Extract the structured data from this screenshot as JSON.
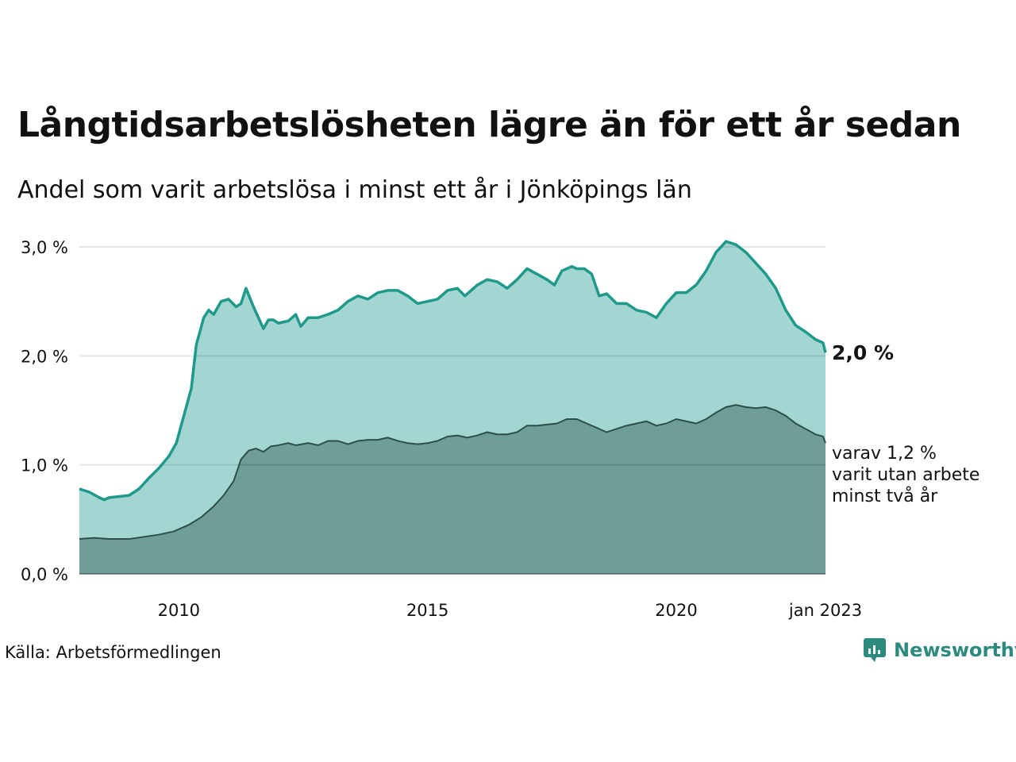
{
  "header": {
    "title": "Långtidsarbetslösheten lägre än för ett år sedan",
    "subtitle": "Andel som varit arbetslösa i minst ett år i Jönköpings län"
  },
  "annotations": {
    "latest_value": "2,0 %",
    "sub_line1": "varav 1,2 %",
    "sub_line2": "varit utan arbete",
    "sub_line3": "minst två år"
  },
  "footer": {
    "source": "Källa: Arbetsförmedlingen",
    "brand": "Newsworthy"
  },
  "colors": {
    "upper_fill": "#a4d6d1",
    "upper_line": "#1f9a8a",
    "lower_fill": "#6f9e97",
    "lower_line": "#2d4f4a",
    "grid": "#dddddd",
    "brand": "#2c8a7f"
  },
  "chart_data": {
    "type": "area",
    "x_start": "2008-01",
    "x_end": "2023-01",
    "x_ticks": [
      {
        "x": 2010,
        "label": "2010"
      },
      {
        "x": 2015,
        "label": "2015"
      },
      {
        "x": 2020,
        "label": "2020"
      },
      {
        "x": 2023,
        "label": "jan 2023"
      }
    ],
    "y_ticks": [
      {
        "y": 0,
        "label": "0,0 %"
      },
      {
        "y": 1,
        "label": "1,0 %"
      },
      {
        "y": 2,
        "label": "2,0 %"
      },
      {
        "y": 3,
        "label": "3,0 %"
      }
    ],
    "ylim": [
      0,
      3
    ],
    "grid": true,
    "series": [
      {
        "values": [
          [
            2008.0,
            0.78
          ],
          [
            2008.2,
            0.75
          ],
          [
            2008.4,
            0.7
          ],
          [
            2008.5,
            0.68
          ],
          [
            2008.6,
            0.7
          ],
          [
            2008.8,
            0.71
          ],
          [
            2009.0,
            0.72
          ],
          [
            2009.2,
            0.78
          ],
          [
            2009.4,
            0.88
          ],
          [
            2009.6,
            0.97
          ],
          [
            2009.8,
            1.08
          ],
          [
            2009.95,
            1.2
          ],
          [
            2010.1,
            1.45
          ],
          [
            2010.25,
            1.7
          ],
          [
            2010.35,
            2.1
          ],
          [
            2010.5,
            2.35
          ],
          [
            2010.6,
            2.42
          ],
          [
            2010.7,
            2.38
          ],
          [
            2010.85,
            2.5
          ],
          [
            2011.0,
            2.52
          ],
          [
            2011.15,
            2.45
          ],
          [
            2011.25,
            2.48
          ],
          [
            2011.35,
            2.62
          ],
          [
            2011.5,
            2.45
          ],
          [
            2011.6,
            2.35
          ],
          [
            2011.7,
            2.25
          ],
          [
            2011.8,
            2.33
          ],
          [
            2011.9,
            2.33
          ],
          [
            2012.0,
            2.3
          ],
          [
            2012.2,
            2.32
          ],
          [
            2012.35,
            2.38
          ],
          [
            2012.45,
            2.27
          ],
          [
            2012.6,
            2.35
          ],
          [
            2012.8,
            2.35
          ],
          [
            2013.0,
            2.38
          ],
          [
            2013.2,
            2.42
          ],
          [
            2013.4,
            2.5
          ],
          [
            2013.6,
            2.55
          ],
          [
            2013.8,
            2.52
          ],
          [
            2014.0,
            2.58
          ],
          [
            2014.2,
            2.6
          ],
          [
            2014.4,
            2.6
          ],
          [
            2014.6,
            2.55
          ],
          [
            2014.8,
            2.48
          ],
          [
            2015.0,
            2.5
          ],
          [
            2015.2,
            2.52
          ],
          [
            2015.4,
            2.6
          ],
          [
            2015.6,
            2.62
          ],
          [
            2015.75,
            2.55
          ],
          [
            2016.0,
            2.65
          ],
          [
            2016.2,
            2.7
          ],
          [
            2016.4,
            2.68
          ],
          [
            2016.6,
            2.62
          ],
          [
            2016.8,
            2.7
          ],
          [
            2017.0,
            2.8
          ],
          [
            2017.2,
            2.75
          ],
          [
            2017.4,
            2.7
          ],
          [
            2017.55,
            2.65
          ],
          [
            2017.7,
            2.78
          ],
          [
            2017.9,
            2.82
          ],
          [
            2018.0,
            2.8
          ],
          [
            2018.15,
            2.8
          ],
          [
            2018.3,
            2.75
          ],
          [
            2018.45,
            2.55
          ],
          [
            2018.6,
            2.57
          ],
          [
            2018.8,
            2.48
          ],
          [
            2019.0,
            2.48
          ],
          [
            2019.2,
            2.42
          ],
          [
            2019.4,
            2.4
          ],
          [
            2019.6,
            2.35
          ],
          [
            2019.8,
            2.48
          ],
          [
            2020.0,
            2.58
          ],
          [
            2020.2,
            2.58
          ],
          [
            2020.4,
            2.65
          ],
          [
            2020.6,
            2.78
          ],
          [
            2020.8,
            2.95
          ],
          [
            2021.0,
            3.05
          ],
          [
            2021.2,
            3.02
          ],
          [
            2021.4,
            2.95
          ],
          [
            2021.6,
            2.85
          ],
          [
            2021.8,
            2.75
          ],
          [
            2022.0,
            2.62
          ],
          [
            2022.2,
            2.42
          ],
          [
            2022.4,
            2.28
          ],
          [
            2022.6,
            2.22
          ],
          [
            2022.8,
            2.15
          ],
          [
            2022.95,
            2.12
          ],
          [
            2023.0,
            2.03
          ]
        ]
      },
      {
        "values": [
          [
            2008.0,
            0.32
          ],
          [
            2008.3,
            0.33
          ],
          [
            2008.6,
            0.32
          ],
          [
            2009.0,
            0.32
          ],
          [
            2009.3,
            0.34
          ],
          [
            2009.6,
            0.36
          ],
          [
            2009.9,
            0.39
          ],
          [
            2010.2,
            0.45
          ],
          [
            2010.45,
            0.52
          ],
          [
            2010.7,
            0.62
          ],
          [
            2010.9,
            0.72
          ],
          [
            2011.1,
            0.85
          ],
          [
            2011.25,
            1.05
          ],
          [
            2011.4,
            1.13
          ],
          [
            2011.55,
            1.15
          ],
          [
            2011.7,
            1.12
          ],
          [
            2011.85,
            1.17
          ],
          [
            2012.0,
            1.18
          ],
          [
            2012.2,
            1.2
          ],
          [
            2012.35,
            1.18
          ],
          [
            2012.6,
            1.2
          ],
          [
            2012.8,
            1.18
          ],
          [
            2013.0,
            1.22
          ],
          [
            2013.2,
            1.22
          ],
          [
            2013.4,
            1.19
          ],
          [
            2013.6,
            1.22
          ],
          [
            2013.8,
            1.23
          ],
          [
            2014.0,
            1.23
          ],
          [
            2014.2,
            1.25
          ],
          [
            2014.4,
            1.22
          ],
          [
            2014.6,
            1.2
          ],
          [
            2014.8,
            1.19
          ],
          [
            2015.0,
            1.2
          ],
          [
            2015.2,
            1.22
          ],
          [
            2015.4,
            1.26
          ],
          [
            2015.6,
            1.27
          ],
          [
            2015.8,
            1.25
          ],
          [
            2016.0,
            1.27
          ],
          [
            2016.2,
            1.3
          ],
          [
            2016.4,
            1.28
          ],
          [
            2016.6,
            1.28
          ],
          [
            2016.8,
            1.3
          ],
          [
            2017.0,
            1.36
          ],
          [
            2017.2,
            1.36
          ],
          [
            2017.4,
            1.37
          ],
          [
            2017.6,
            1.38
          ],
          [
            2017.8,
            1.42
          ],
          [
            2018.0,
            1.42
          ],
          [
            2018.2,
            1.38
          ],
          [
            2018.4,
            1.34
          ],
          [
            2018.6,
            1.3
          ],
          [
            2018.8,
            1.33
          ],
          [
            2019.0,
            1.36
          ],
          [
            2019.2,
            1.38
          ],
          [
            2019.4,
            1.4
          ],
          [
            2019.6,
            1.36
          ],
          [
            2019.8,
            1.38
          ],
          [
            2020.0,
            1.42
          ],
          [
            2020.2,
            1.4
          ],
          [
            2020.4,
            1.38
          ],
          [
            2020.6,
            1.42
          ],
          [
            2020.8,
            1.48
          ],
          [
            2021.0,
            1.53
          ],
          [
            2021.2,
            1.55
          ],
          [
            2021.4,
            1.53
          ],
          [
            2021.6,
            1.52
          ],
          [
            2021.8,
            1.53
          ],
          [
            2022.0,
            1.5
          ],
          [
            2022.2,
            1.45
          ],
          [
            2022.4,
            1.38
          ],
          [
            2022.6,
            1.33
          ],
          [
            2022.8,
            1.28
          ],
          [
            2022.95,
            1.26
          ],
          [
            2023.0,
            1.2
          ]
        ]
      }
    ]
  }
}
